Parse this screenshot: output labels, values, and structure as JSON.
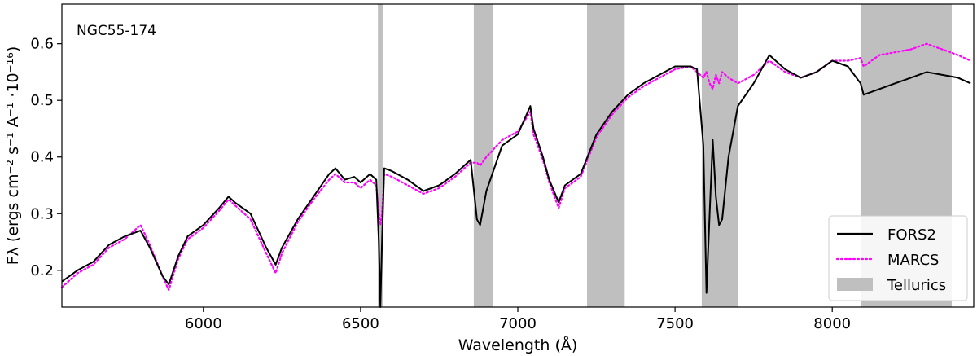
{
  "chart_data": {
    "type": "line",
    "title": "",
    "annotation": "NGC55-174",
    "xlabel": "Wavelength (Å)",
    "ylabel": "Fλ (ergs cm⁻² s⁻¹ A⁻¹ ·10⁻¹⁶)",
    "xlim": [
      5550,
      8450
    ],
    "ylim": [
      0.135,
      0.67
    ],
    "xticks": [
      6000,
      6500,
      7000,
      7500,
      8000
    ],
    "xtick_labels": [
      "6000",
      "6500",
      "7000",
      "7500",
      "8000"
    ],
    "yticks": [
      0.2,
      0.3,
      0.4,
      0.5,
      0.6
    ],
    "ytick_labels": [
      "0.2",
      "0.3",
      "0.4",
      "0.5",
      "0.6"
    ],
    "grid": false,
    "legend_position": "bottom-right",
    "telluric_bands": [
      [
        6555,
        6570
      ],
      [
        6860,
        6920
      ],
      [
        7220,
        7340
      ],
      [
        7585,
        7700
      ],
      [
        8090,
        8380
      ]
    ],
    "series": [
      {
        "name": "FORS2",
        "color": "#000000",
        "style": "solid",
        "x": [
          5550,
          5600,
          5650,
          5700,
          5750,
          5800,
          5830,
          5870,
          5890,
          5920,
          5950,
          6000,
          6050,
          6080,
          6100,
          6150,
          6200,
          6230,
          6250,
          6300,
          6350,
          6400,
          6420,
          6450,
          6480,
          6500,
          6530,
          6550,
          6558,
          6563,
          6568,
          6575,
          6600,
          6650,
          6700,
          6750,
          6800,
          6850,
          6870,
          6880,
          6900,
          6950,
          7000,
          7040,
          7050,
          7080,
          7100,
          7130,
          7150,
          7200,
          7250,
          7300,
          7350,
          7400,
          7450,
          7500,
          7550,
          7570,
          7590,
          7600,
          7610,
          7620,
          7630,
          7640,
          7650,
          7670,
          7700,
          7750,
          7800,
          7850,
          7900,
          7950,
          8000,
          8050,
          8090,
          8100,
          8150,
          8200,
          8250,
          8300,
          8350,
          8400,
          8440
        ],
        "y": [
          0.18,
          0.2,
          0.215,
          0.245,
          0.26,
          0.27,
          0.24,
          0.19,
          0.175,
          0.225,
          0.26,
          0.28,
          0.31,
          0.33,
          0.32,
          0.3,
          0.24,
          0.21,
          0.24,
          0.29,
          0.33,
          0.37,
          0.38,
          0.36,
          0.365,
          0.355,
          0.37,
          0.36,
          0.25,
          0.135,
          0.25,
          0.38,
          0.375,
          0.36,
          0.34,
          0.35,
          0.37,
          0.395,
          0.29,
          0.28,
          0.34,
          0.42,
          0.44,
          0.49,
          0.45,
          0.4,
          0.36,
          0.32,
          0.35,
          0.37,
          0.44,
          0.48,
          0.51,
          0.53,
          0.545,
          0.56,
          0.56,
          0.555,
          0.42,
          0.16,
          0.3,
          0.43,
          0.33,
          0.28,
          0.29,
          0.4,
          0.49,
          0.53,
          0.58,
          0.555,
          0.54,
          0.55,
          0.57,
          0.56,
          0.53,
          0.51,
          0.52,
          0.53,
          0.54,
          0.55,
          0.545,
          0.54,
          0.53
        ]
      },
      {
        "name": "MARCS",
        "color": "#ff00ff",
        "style": "dotted",
        "x": [
          5550,
          5600,
          5650,
          5700,
          5750,
          5800,
          5830,
          5870,
          5890,
          5920,
          5950,
          6000,
          6050,
          6080,
          6100,
          6150,
          6200,
          6230,
          6250,
          6300,
          6350,
          6400,
          6420,
          6450,
          6480,
          6500,
          6530,
          6550,
          6558,
          6563,
          6568,
          6575,
          6600,
          6650,
          6700,
          6750,
          6800,
          6850,
          6870,
          6880,
          6900,
          6950,
          7000,
          7040,
          7050,
          7080,
          7100,
          7130,
          7150,
          7200,
          7250,
          7300,
          7350,
          7400,
          7450,
          7500,
          7550,
          7570,
          7590,
          7600,
          7610,
          7620,
          7630,
          7640,
          7650,
          7670,
          7700,
          7750,
          7800,
          7850,
          7900,
          7950,
          8000,
          8050,
          8090,
          8100,
          8150,
          8200,
          8250,
          8300,
          8350,
          8400,
          8440
        ],
        "y": [
          0.17,
          0.195,
          0.21,
          0.24,
          0.255,
          0.28,
          0.245,
          0.19,
          0.165,
          0.22,
          0.255,
          0.275,
          0.305,
          0.325,
          0.315,
          0.29,
          0.23,
          0.195,
          0.23,
          0.285,
          0.325,
          0.36,
          0.37,
          0.355,
          0.355,
          0.345,
          0.36,
          0.35,
          0.3,
          0.28,
          0.3,
          0.37,
          0.365,
          0.35,
          0.335,
          0.345,
          0.365,
          0.39,
          0.39,
          0.385,
          0.4,
          0.43,
          0.445,
          0.48,
          0.44,
          0.395,
          0.355,
          0.31,
          0.345,
          0.365,
          0.435,
          0.475,
          0.505,
          0.525,
          0.54,
          0.555,
          0.56,
          0.55,
          0.54,
          0.55,
          0.53,
          0.52,
          0.545,
          0.53,
          0.55,
          0.54,
          0.53,
          0.545,
          0.57,
          0.55,
          0.54,
          0.55,
          0.57,
          0.57,
          0.575,
          0.56,
          0.58,
          0.585,
          0.59,
          0.6,
          0.59,
          0.58,
          0.57
        ]
      }
    ],
    "legend": [
      {
        "label": "FORS2",
        "kind": "line",
        "color": "#000000"
      },
      {
        "label": "MARCS",
        "kind": "dotted",
        "color": "#ff00ff"
      },
      {
        "label": "Tellurics",
        "kind": "patch",
        "color": "#bfbfbf"
      }
    ]
  }
}
